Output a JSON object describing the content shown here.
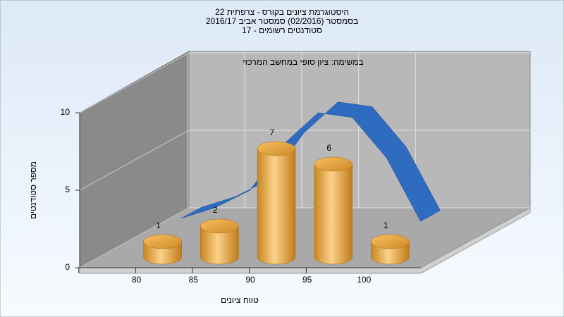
{
  "chart_data": {
    "type": "bar3d",
    "title": [
      "היסטוגרמת ציונים בקורס - צרפתית 22",
      "בסמסטר  (02/2016)  סמסטר אביב 2016/17",
      "סטודנטים רשומים - 17"
    ],
    "annotation": "במשימה: ציון סופי במחשב המרכזי",
    "x_label": "טווח ציונים",
    "y_label": "מספר סטודנטים",
    "x": [
      80,
      85,
      90,
      95,
      100
    ],
    "series": [
      {
        "type": "bar",
        "color": "#e8a53c",
        "values": [
          1,
          2,
          7,
          6,
          1
        ]
      },
      {
        "type": "line",
        "color": "#2f6cc0",
        "x": [
          80,
          83,
          86,
          89,
          92,
          95,
          98,
          101
        ],
        "values": [
          0.8,
          1.5,
          2.6,
          5.6,
          7.6,
          7.3,
          4.7,
          0.6
        ]
      }
    ],
    "xlim": [
      75,
      105
    ],
    "xticks": [
      80,
      85,
      90,
      95,
      100
    ],
    "ylim": [
      0,
      10
    ],
    "yticks": [
      0,
      5,
      10
    ],
    "grid": true
  }
}
